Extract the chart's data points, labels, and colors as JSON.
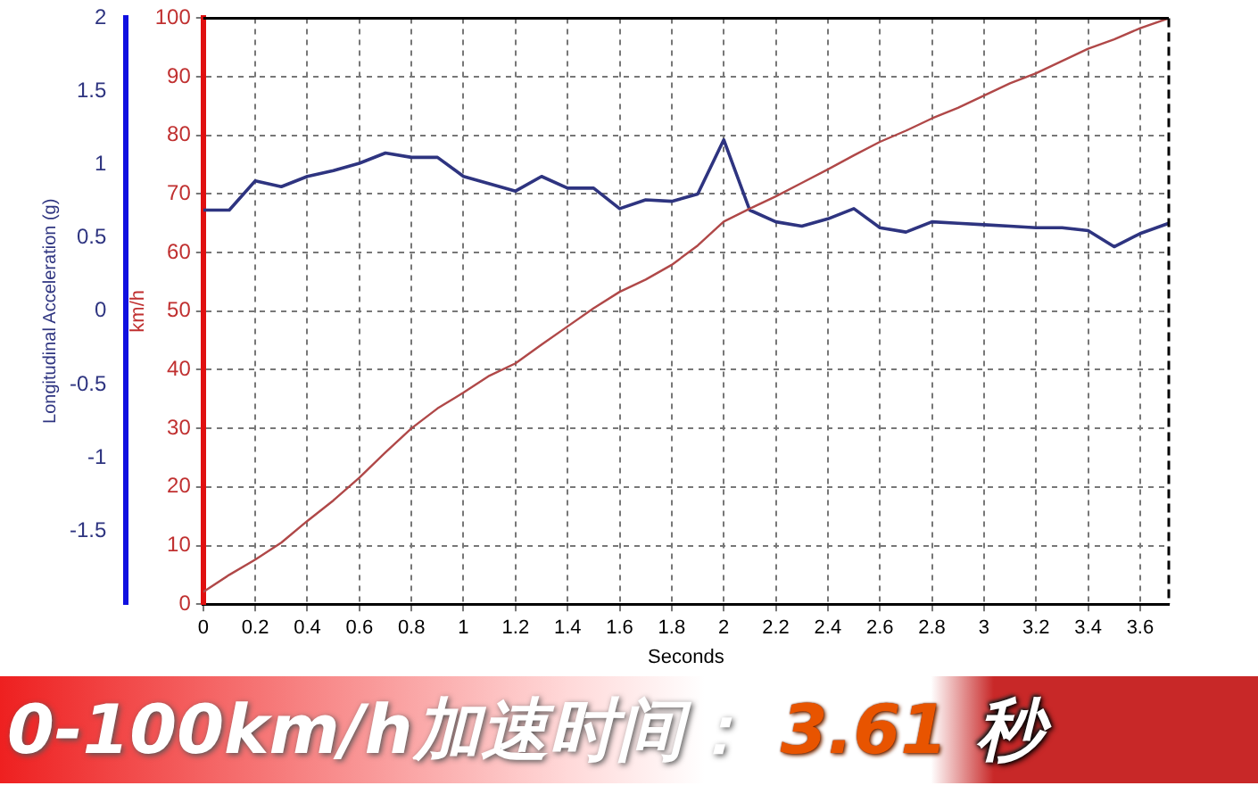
{
  "chart_data": {
    "type": "line",
    "xlabel": "Seconds",
    "ylabel": "km/h",
    "y2label": "Longitudinal Acceleration (g)",
    "x": [
      0,
      0.1,
      0.2,
      0.3,
      0.4,
      0.5,
      0.6,
      0.7,
      0.8,
      0.9,
      1.0,
      1.1,
      1.2,
      1.3,
      1.4,
      1.5,
      1.6,
      1.7,
      1.8,
      1.9,
      2.0,
      2.1,
      2.2,
      2.3,
      2.4,
      2.5,
      2.6,
      2.7,
      2.8,
      2.9,
      3.0,
      3.1,
      3.2,
      3.3,
      3.4,
      3.5,
      3.6,
      3.71
    ],
    "series": [
      {
        "color": "#b04848",
        "axis": "y",
        "values": [
          2.1,
          5.0,
          7.6,
          10.5,
          14.2,
          17.7,
          21.6,
          25.9,
          30.0,
          33.4,
          36.1,
          39.0,
          41.1,
          44.3,
          47.4,
          50.5,
          53.3,
          55.4,
          57.9,
          61.2,
          65.3,
          67.5,
          69.6,
          71.9,
          74.2,
          76.6,
          78.9,
          80.8,
          82.9,
          84.7,
          86.8,
          88.9,
          90.6,
          92.7,
          94.8,
          96.4,
          98.3,
          100
        ]
      },
      {
        "color": "#2e3480",
        "axis": "y2",
        "values": [
          0.69,
          0.69,
          0.89,
          0.85,
          0.92,
          0.96,
          1.01,
          1.08,
          1.05,
          1.05,
          0.92,
          0.87,
          0.82,
          0.92,
          0.84,
          0.84,
          0.7,
          0.76,
          0.75,
          0.8,
          1.17,
          0.69,
          0.61,
          0.58,
          0.63,
          0.7,
          0.57,
          0.54,
          0.61,
          0.6,
          0.59,
          0.58,
          0.57,
          0.57,
          0.55,
          0.44,
          0.53,
          0.6
        ]
      }
    ],
    "xlim": [
      0,
      3.71
    ],
    "xticks": [
      0,
      0.2,
      0.4,
      0.6,
      0.8,
      1,
      1.2,
      1.4,
      1.6,
      1.8,
      2,
      2.2,
      2.4,
      2.6,
      2.8,
      3,
      3.2,
      3.4,
      3.6
    ],
    "ylim": [
      0,
      100
    ],
    "yticks": [
      0,
      10,
      20,
      30,
      40,
      50,
      60,
      70,
      80,
      90,
      100
    ],
    "y2lim": [
      -2,
      2
    ],
    "y2ticks": [
      -1.5,
      -1,
      -0.5,
      0,
      0.5,
      1,
      1.5,
      2
    ],
    "grid": true,
    "legend": false,
    "marker": "none",
    "line_style": "solid",
    "annotations": [
      "0-100km/h加速时间：",
      "3.61",
      "秒"
    ]
  }
}
